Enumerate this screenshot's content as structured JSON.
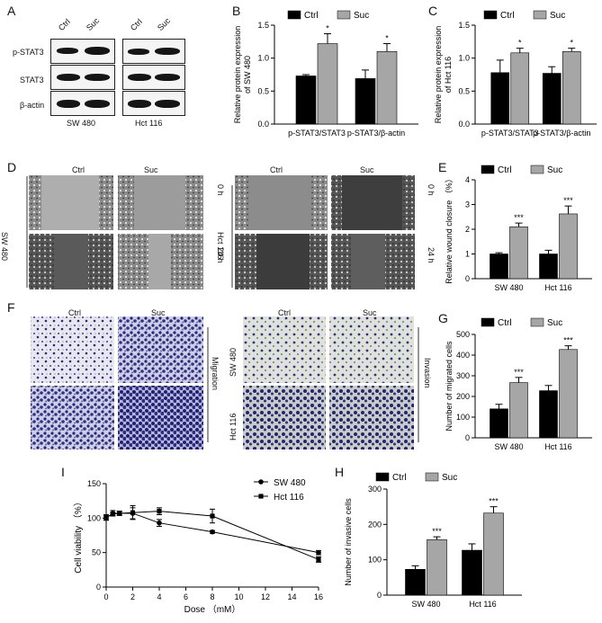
{
  "panels": {
    "A": "A",
    "B": "B",
    "C": "C",
    "D": "D",
    "E": "E",
    "F": "F",
    "G": "G",
    "H": "H",
    "I": "I"
  },
  "blot": {
    "lanes": [
      "Ctrl",
      "Suc"
    ],
    "rows": [
      "p-STAT3",
      "STAT3",
      "β-actin"
    ],
    "cell_lines": [
      "SW 480",
      "Hct 116"
    ]
  },
  "wound_images": {
    "cols": [
      "Ctrl",
      "Suc"
    ],
    "left_row_label": "SW 480",
    "right_row_label": "Hct 116",
    "times": [
      "0 h",
      "24 h"
    ]
  },
  "transwell_images": {
    "cols": [
      "Ctrl",
      "Suc"
    ],
    "rows": [
      "SW 480",
      "Hct 116"
    ],
    "left_side": "Migration",
    "right_side": "Invasion"
  },
  "colors": {
    "ctrl": "#000000",
    "suc": "#a6a6a6",
    "crystal_violet": "#2a2a8a"
  },
  "chart_data": [
    {
      "id": "B",
      "type": "bar",
      "categories": [
        "p-STAT3/STAT3",
        "p-STAT3/β-actin"
      ],
      "series": [
        {
          "name": "Ctrl",
          "values": [
            0.73,
            0.69
          ],
          "errors": [
            0.02,
            0.13
          ]
        },
        {
          "name": "Suc",
          "values": [
            1.22,
            1.1
          ],
          "errors": [
            0.15,
            0.12
          ]
        }
      ],
      "significance": [
        "*",
        "*"
      ],
      "ylabel": "Relative protein expression of SW 480",
      "ylim": [
        0,
        1.5
      ],
      "yticks": [
        "0.0",
        "0.5",
        "1.0",
        "1.5"
      ],
      "legend": "top"
    },
    {
      "id": "C",
      "type": "bar",
      "categories": [
        "p-STAT3/STAT3",
        "p-STAT3/β-actin"
      ],
      "series": [
        {
          "name": "Ctrl",
          "values": [
            0.78,
            0.77
          ],
          "errors": [
            0.19,
            0.1
          ]
        },
        {
          "name": "Suc",
          "values": [
            1.08,
            1.1
          ],
          "errors": [
            0.07,
            0.05
          ]
        }
      ],
      "significance": [
        "*",
        "*"
      ],
      "ylabel": "Relative protein expression of Hct 116",
      "ylim": [
        0,
        1.5
      ],
      "yticks": [
        "0.0",
        "0.5",
        "1.0",
        "1.5"
      ],
      "legend": "top"
    },
    {
      "id": "E",
      "type": "bar",
      "categories": [
        "SW 480",
        "Hct 116"
      ],
      "series": [
        {
          "name": "Ctrl",
          "values": [
            1.0,
            1.0
          ],
          "errors": [
            0.05,
            0.15
          ]
        },
        {
          "name": "Suc",
          "values": [
            2.1,
            2.62
          ],
          "errors": [
            0.15,
            0.32
          ]
        }
      ],
      "significance": [
        "***",
        "***"
      ],
      "ylabel": "Relative wound closure （%）",
      "ylim": [
        0,
        4
      ],
      "yticks": [
        "0",
        "1",
        "2",
        "3",
        "4"
      ],
      "legend": "top"
    },
    {
      "id": "G",
      "type": "bar",
      "categories": [
        "SW 480",
        "Hct 116"
      ],
      "series": [
        {
          "name": "Ctrl",
          "values": [
            140,
            228
          ],
          "errors": [
            22,
            25
          ]
        },
        {
          "name": "Suc",
          "values": [
            267,
            427
          ],
          "errors": [
            25,
            18
          ]
        }
      ],
      "significance": [
        "***",
        "***"
      ],
      "ylabel": "Number of migrated cells",
      "ylim": [
        0,
        500
      ],
      "yticks": [
        "0",
        "100",
        "200",
        "300",
        "400",
        "500"
      ],
      "legend": "top"
    },
    {
      "id": "H",
      "type": "bar",
      "categories": [
        "SW 480",
        "Hct 116"
      ],
      "series": [
        {
          "name": "Ctrl",
          "values": [
            73,
            127
          ],
          "errors": [
            10,
            18
          ]
        },
        {
          "name": "Suc",
          "values": [
            157,
            232
          ],
          "errors": [
            8,
            18
          ]
        }
      ],
      "significance": [
        "***",
        "***"
      ],
      "ylabel": "Number of invasive cells",
      "ylim": [
        0,
        300
      ],
      "yticks": [
        "0",
        "100",
        "200",
        "300"
      ],
      "legend": "top"
    },
    {
      "id": "I",
      "type": "line",
      "x": [
        0,
        0.5,
        1,
        2,
        4,
        8,
        16
      ],
      "series": [
        {
          "name": "SW 480",
          "marker": "circle",
          "values": [
            100,
            107,
            107,
            107,
            93,
            80,
            50
          ],
          "errors": [
            3,
            4,
            3,
            8,
            5,
            2,
            3
          ]
        },
        {
          "name": "Hct 116",
          "marker": "square",
          "values": [
            101,
            106,
            107,
            108,
            110,
            103,
            40
          ],
          "errors": [
            4,
            2,
            3,
            10,
            5,
            10,
            4
          ]
        }
      ],
      "xlabel": "Dose （mM）",
      "ylabel": "Cell viability （%）",
      "xlim": [
        0,
        16
      ],
      "ylim": [
        0,
        150
      ],
      "xticks": [
        "0",
        "2",
        "4",
        "6",
        "8",
        "10",
        "12",
        "14",
        "16"
      ],
      "yticks": [
        "0",
        "50",
        "100",
        "150"
      ],
      "legend": "top-right"
    }
  ]
}
